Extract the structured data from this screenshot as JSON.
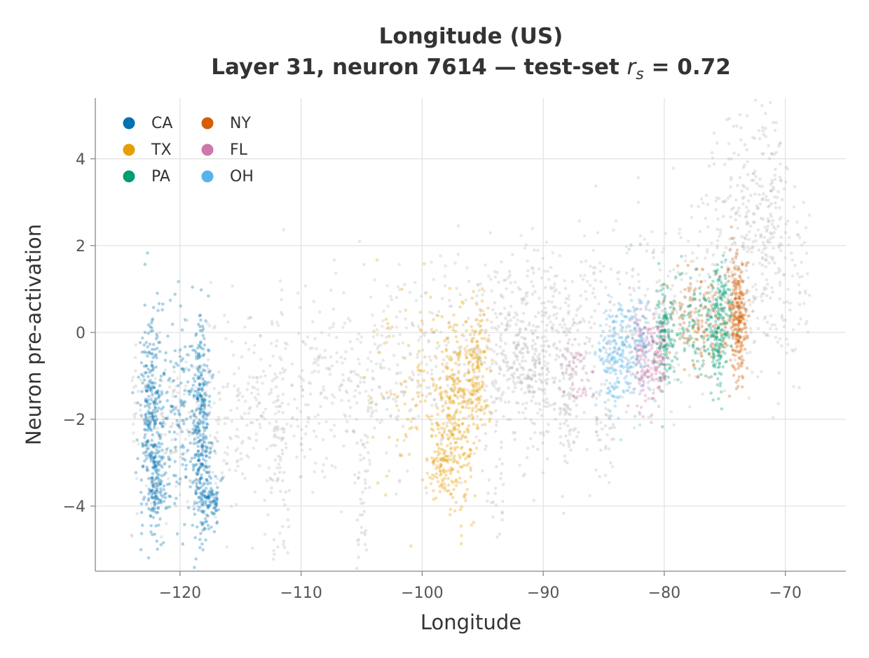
{
  "chart_data": {
    "type": "scatter",
    "title": "Longitude (US)",
    "subtitle_main": "Layer 31, neuron 7614 — test-set ",
    "subtitle_symbol": "r",
    "subtitle_symbol_sub": "s",
    "subtitle_value": " = 0.72",
    "xlabel": "Longitude",
    "ylabel": "Neuron pre-activation",
    "xlim": [
      -127,
      -65
    ],
    "ylim": [
      -5.5,
      5.4
    ],
    "x_ticks": [
      -120,
      -110,
      -100,
      -90,
      -80,
      -70
    ],
    "x_tick_labels": [
      "−120",
      "−110",
      "−100",
      "−90",
      "−80",
      "−70"
    ],
    "y_ticks": [
      -4,
      -2,
      0,
      2,
      4
    ],
    "y_tick_labels": [
      "−4",
      "−2",
      "0",
      "2",
      "4"
    ],
    "grid": true,
    "legend_position": "top-left",
    "background_series": {
      "color": "#b0b0b0"
    },
    "series": [
      {
        "name": "CA",
        "color": "#0072b2",
        "clusters": [
          {
            "x": -122.3,
            "xs": 0.5,
            "y": -2.2,
            "ys": 1.3,
            "n": 330
          },
          {
            "x": -118.2,
            "xs": 0.4,
            "y": -2.4,
            "ys": 1.3,
            "n": 330
          },
          {
            "x": -120.2,
            "xs": 1.0,
            "y": -1.8,
            "ys": 1.4,
            "n": 140
          },
          {
            "x": -122.0,
            "xs": 0.4,
            "y": -3.6,
            "ys": 0.3,
            "n": 60
          },
          {
            "x": -117.5,
            "xs": 0.4,
            "y": -3.9,
            "ys": 0.25,
            "n": 70
          }
        ]
      },
      {
        "name": "NY",
        "color": "#d55e00",
        "clusters": [
          {
            "x": -73.9,
            "xs": 0.35,
            "y": 0.4,
            "ys": 0.7,
            "n": 250
          },
          {
            "x": -76.8,
            "xs": 1.3,
            "y": 0.3,
            "ys": 0.6,
            "n": 130
          }
        ]
      },
      {
        "name": "TX",
        "color": "#e69f00",
        "clusters": [
          {
            "x": -97.3,
            "xs": 0.9,
            "y": -1.8,
            "ys": 1.2,
            "n": 300
          },
          {
            "x": -95.4,
            "xs": 0.5,
            "y": -1.0,
            "ys": 0.8,
            "n": 140
          },
          {
            "x": -98.2,
            "xs": 0.6,
            "y": -3.0,
            "ys": 0.4,
            "n": 80
          },
          {
            "x": -100.8,
            "xs": 1.7,
            "y": -1.5,
            "ys": 1.2,
            "n": 90
          }
        ]
      },
      {
        "name": "FL",
        "color": "#cc79a7",
        "clusters": [
          {
            "x": -81.6,
            "xs": 0.6,
            "y": -0.5,
            "ys": 0.6,
            "n": 160
          },
          {
            "x": -80.3,
            "xs": 0.3,
            "y": -0.5,
            "ys": 0.5,
            "n": 80
          },
          {
            "x": -87.0,
            "xs": 0.8,
            "y": -0.9,
            "ys": 0.5,
            "n": 40
          }
        ]
      },
      {
        "name": "PA",
        "color": "#009e73",
        "clusters": [
          {
            "x": -75.4,
            "xs": 0.5,
            "y": 0.1,
            "ys": 0.7,
            "n": 200
          },
          {
            "x": -79.9,
            "xs": 0.4,
            "y": 0.1,
            "ys": 0.6,
            "n": 120
          },
          {
            "x": -77.5,
            "xs": 1.0,
            "y": 0.2,
            "ys": 0.6,
            "n": 90
          }
        ]
      },
      {
        "name": "OH",
        "color": "#56b4e9",
        "clusters": [
          {
            "x": -84.2,
            "xs": 0.6,
            "y": -0.6,
            "ys": 0.6,
            "n": 150
          },
          {
            "x": -82.4,
            "xs": 0.7,
            "y": -0.3,
            "ys": 0.6,
            "n": 120
          }
        ]
      }
    ]
  }
}
